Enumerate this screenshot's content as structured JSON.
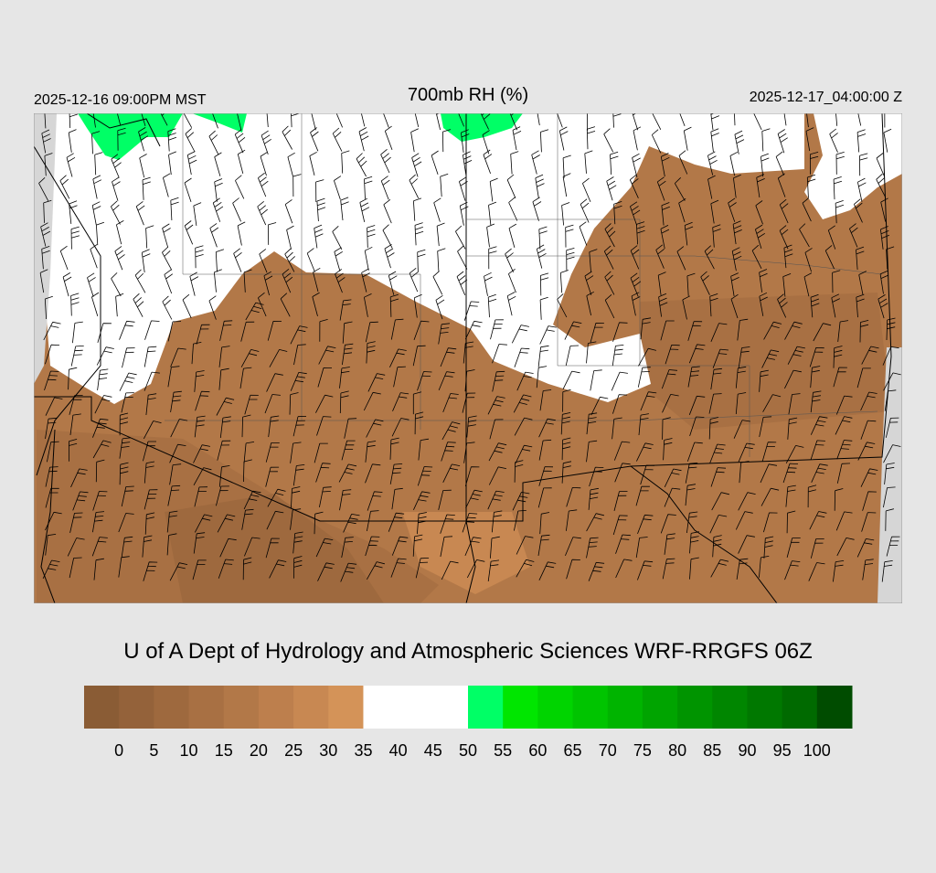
{
  "header": {
    "valid_local": "2025-12-16 09:00PM MST",
    "title": "700mb RH (%)",
    "valid_utc": "2025-12-17_04:00:00 Z"
  },
  "credit": "U of A Dept of Hydrology and Atmospheric Sciences WRF-RRGFS 06Z",
  "colorbar": {
    "colors": [
      "#8a5c35",
      "#94623a",
      "#9e693e",
      "#a87043",
      "#b27848",
      "#bd7f4d",
      "#c88852",
      "#d49358",
      "#ffffff",
      "#ffffff",
      "#ffffff",
      "#00ff66",
      "#00e600",
      "#00d400",
      "#00c400",
      "#00b400",
      "#00a400",
      "#009400",
      "#008600",
      "#007800",
      "#006a00",
      "#004c00"
    ],
    "ticks": [
      0,
      5,
      10,
      15,
      20,
      25,
      30,
      35,
      40,
      45,
      50,
      55,
      60,
      65,
      70,
      75,
      80,
      85,
      90,
      95,
      100
    ]
  }
}
